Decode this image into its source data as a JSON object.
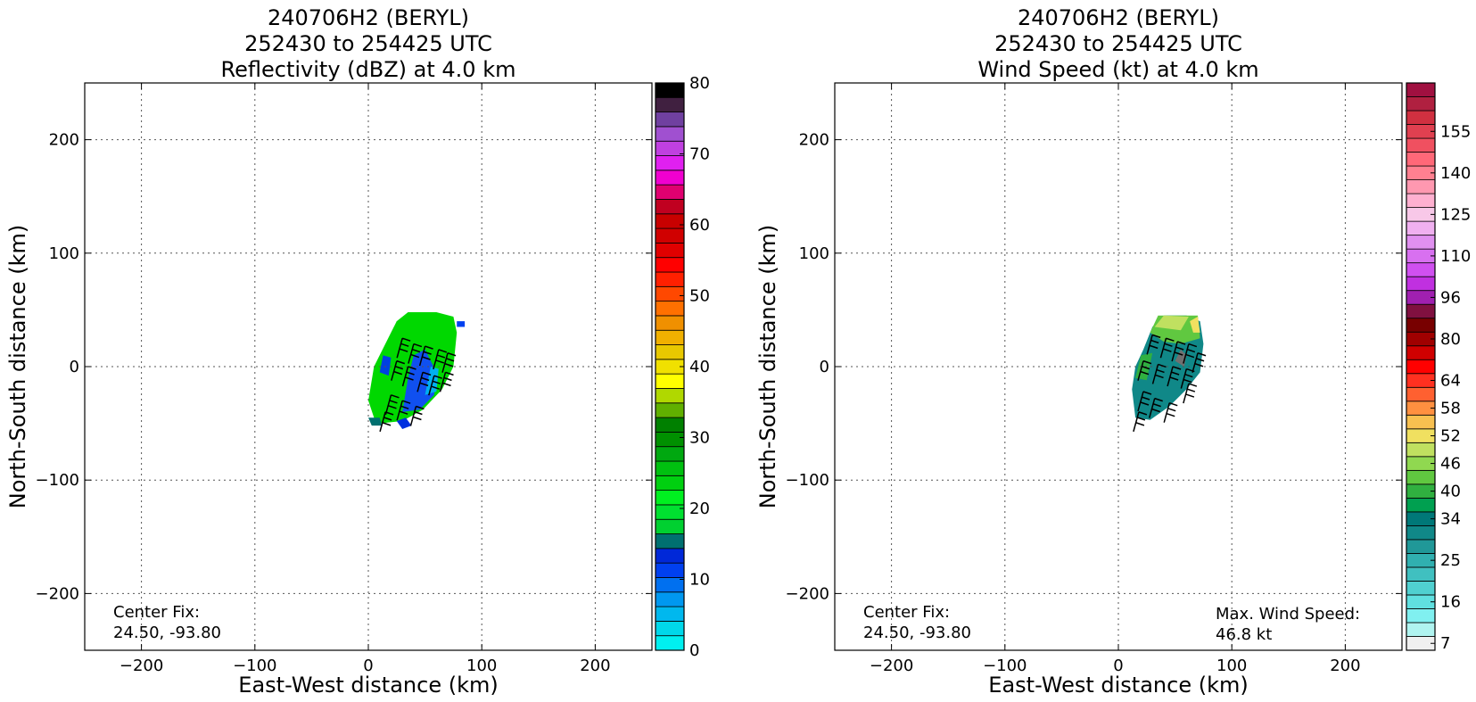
{
  "chart_data": [
    {
      "type": "heatmap",
      "title": [
        "240706H2 (BERYL)",
        "252430 to 254425 UTC",
        "Reflectivity (dBZ) at 4.0 km"
      ],
      "xlabel": "East-West distance (km)",
      "ylabel": "North-South distance (km)",
      "xlim": [
        -250,
        250
      ],
      "ylim": [
        -250,
        250
      ],
      "x_ticks": [
        -200,
        -100,
        0,
        100,
        200
      ],
      "y_ticks": [
        -200,
        -100,
        0,
        100,
        200
      ],
      "x_tick_labels": [
        "−200",
        "−100",
        "0",
        "100",
        "200"
      ],
      "y_tick_labels": [
        "−200",
        "−100",
        "0",
        "100",
        "200"
      ],
      "grid": true,
      "center_fix_label": "Center Fix:",
      "center_fix_value": "24.50, -93.80",
      "colorbar": {
        "min": 0,
        "max": 80,
        "tick_values": [
          0,
          10,
          20,
          30,
          40,
          50,
          60,
          70,
          80
        ],
        "tick_labels": [
          "0",
          "10",
          "20",
          "30",
          "40",
          "50",
          "60",
          "70",
          "80"
        ],
        "colors": [
          "#00f0f0",
          "#00d8ea",
          "#00b8ee",
          "#0098f0",
          "#0070f0",
          "#0040f0",
          "#0028d8",
          "#007070",
          "#00d030",
          "#00e030",
          "#00f020",
          "#00d010",
          "#00c010",
          "#00a810",
          "#009000",
          "#008000",
          "#60b000",
          "#b0d800",
          "#ffff00",
          "#f0e000",
          "#e8c800",
          "#f0b000",
          "#f09000",
          "#ff7000",
          "#ff4800",
          "#ff2000",
          "#ff0000",
          "#e00000",
          "#d00000",
          "#c80000",
          "#c00020",
          "#e00070",
          "#f000d0",
          "#e020f0",
          "#c040e0",
          "#a050d0",
          "#7040a0",
          "#402040",
          "#000000"
        ]
      },
      "field_color_names": [
        "green",
        "blue",
        "cyan",
        "teal"
      ],
      "wind_barbs": true
    },
    {
      "type": "heatmap",
      "title": [
        "240706H2 (BERYL)",
        "252430 to 254425 UTC",
        "Wind Speed (kt) at 4.0 km"
      ],
      "xlabel": "East-West distance (km)",
      "ylabel": "North-South distance (km)",
      "xlim": [
        -250,
        250
      ],
      "ylim": [
        -250,
        250
      ],
      "x_ticks": [
        -200,
        -100,
        0,
        100,
        200
      ],
      "y_ticks": [
        -200,
        -100,
        0,
        100,
        200
      ],
      "x_tick_labels": [
        "−200",
        "−100",
        "0",
        "100",
        "200"
      ],
      "y_tick_labels": [
        "−200",
        "−100",
        "0",
        "100",
        "200"
      ],
      "grid": true,
      "center_fix_label": "Center Fix:",
      "center_fix_value": "24.50, -93.80",
      "max_wind_label": "Max. Wind Speed:",
      "max_wind_value": "46.8 kt",
      "colorbar": {
        "tick_labels": [
          "7",
          "16",
          "25",
          "34",
          "40",
          "46",
          "52",
          "58",
          "64",
          "80",
          "96",
          "110",
          "125",
          "140",
          "155"
        ],
        "tick_levels": [
          0,
          3,
          6,
          9,
          11,
          13,
          15,
          17,
          19,
          22,
          25,
          28,
          31,
          34,
          37
        ],
        "colors": [
          "#f0f0f0",
          "#b0f4f0",
          "#80f0f0",
          "#60e0e0",
          "#50d0d0",
          "#40c0c0",
          "#30b0b0",
          "#209898",
          "#108888",
          "#007878",
          "#00a050",
          "#30b040",
          "#60c840",
          "#90d850",
          "#c0e060",
          "#f0e060",
          "#f8c050",
          "#ff9040",
          "#ff6030",
          "#ff3020",
          "#ff0000",
          "#d00000",
          "#a00000",
          "#780000",
          "#801040",
          "#a020b0",
          "#c030e0",
          "#d050f0",
          "#d870f0",
          "#e090f0",
          "#f0b0f0",
          "#f8c8e8",
          "#ffb0d0",
          "#ff98b0",
          "#ff8090",
          "#ff6878",
          "#f05060",
          "#e04050",
          "#d03040",
          "#b02040",
          "#a01040"
        ]
      },
      "field_color_names": [
        "teal",
        "green",
        "yellow-green"
      ],
      "wind_barbs": true
    }
  ]
}
